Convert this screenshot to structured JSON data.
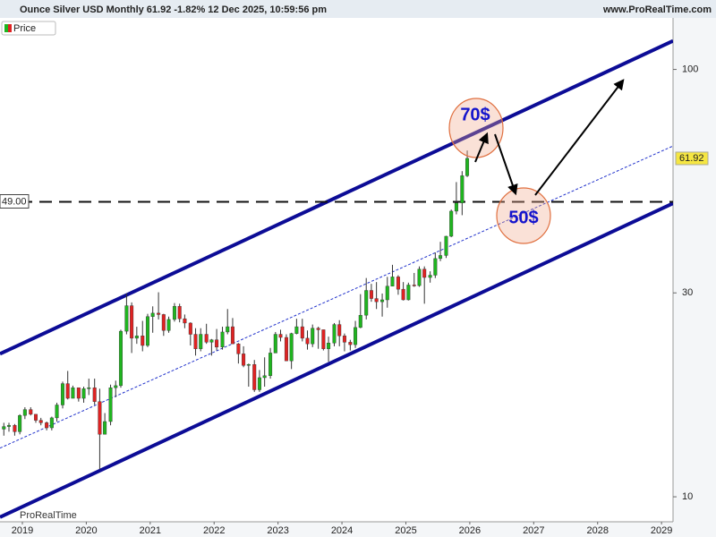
{
  "chart_data": {
    "type": "candlestick",
    "title": "Ounce Silver USD Monthly 61.92 -1.82% 12 Dec 2025, 10:59:56 pm",
    "source": "www.ProRealTime.com",
    "watermark": "ProRealTime",
    "log_scale": true,
    "up_color": "#1fb51f",
    "down_color": "#e02222",
    "x": [
      2018.71,
      2018.79,
      2018.88,
      2018.96,
      2019.04,
      2019.13,
      2019.21,
      2019.29,
      2019.38,
      2019.46,
      2019.54,
      2019.63,
      2019.71,
      2019.79,
      2019.88,
      2019.96,
      2020.04,
      2020.13,
      2020.21,
      2020.29,
      2020.38,
      2020.46,
      2020.54,
      2020.63,
      2020.71,
      2020.79,
      2020.88,
      2020.96,
      2021.04,
      2021.13,
      2021.21,
      2021.29,
      2021.38,
      2021.46,
      2021.54,
      2021.63,
      2021.71,
      2021.79,
      2021.88,
      2021.96,
      2022.04,
      2022.13,
      2022.21,
      2022.29,
      2022.38,
      2022.46,
      2022.54,
      2022.63,
      2022.71,
      2022.79,
      2022.88,
      2022.96,
      2023.04,
      2023.13,
      2023.21,
      2023.29,
      2023.38,
      2023.46,
      2023.54,
      2023.63,
      2023.71,
      2023.79,
      2023.88,
      2023.96,
      2024.04,
      2024.13,
      2024.21,
      2024.29,
      2024.38,
      2024.46,
      2024.54,
      2024.63,
      2024.71,
      2024.79,
      2024.88,
      2024.96,
      2025.04,
      2025.13,
      2025.21,
      2025.29,
      2025.38,
      2025.46,
      2025.54,
      2025.63,
      2025.71,
      2025.79,
      2025.88,
      2025.96
    ],
    "series": [
      {
        "name": "Price",
        "open": [
          14.4,
          14.6,
          14.7,
          14.2,
          15.5,
          16.0,
          15.6,
          15.1,
          14.9,
          14.5,
          15.3,
          16.4,
          18.4,
          17.0,
          18.0,
          17.0,
          17.9,
          18.0,
          16.7,
          14.0,
          15.0,
          18.0,
          18.2,
          24.4,
          28.0,
          23.5,
          23.8,
          22.6,
          26.4,
          26.9,
          26.7,
          24.5,
          26.0,
          27.9,
          26.1,
          25.5,
          24.0,
          22.2,
          24.0,
          23.0,
          23.3,
          22.4,
          24.3,
          25.0,
          22.8,
          21.6,
          20.3,
          20.4,
          17.8,
          19.0,
          19.2,
          21.7,
          24.0,
          23.6,
          20.8,
          24.1,
          25.0,
          23.5,
          22.8,
          24.8,
          24.6,
          22.2,
          22.9,
          25.3,
          23.8,
          23.0,
          22.7,
          24.9,
          26.6,
          30.4,
          29.1,
          28.6,
          28.9,
          31.1,
          32.7,
          30.6,
          28.9,
          31.3,
          31.2,
          34.1,
          32.6,
          33.0,
          36.1,
          36.7,
          40.7,
          46.6,
          48.7,
          56.4
        ],
        "high": [
          14.9,
          14.9,
          14.8,
          15.6,
          16.2,
          16.2,
          15.6,
          15.3,
          15.0,
          15.4,
          16.6,
          18.6,
          19.7,
          18.2,
          18.0,
          18.1,
          18.9,
          18.9,
          17.9,
          15.7,
          18.3,
          18.7,
          24.6,
          29.9,
          28.5,
          25.0,
          25.8,
          26.8,
          27.9,
          30.1,
          26.8,
          26.4,
          28.4,
          28.3,
          26.7,
          25.6,
          24.8,
          24.8,
          25.4,
          23.4,
          24.7,
          25.0,
          27.5,
          26.2,
          22.9,
          22.5,
          20.5,
          20.9,
          19.8,
          21.2,
          22.3,
          24.3,
          24.6,
          24.0,
          24.2,
          26.1,
          26.1,
          24.5,
          25.3,
          25.0,
          24.6,
          23.7,
          25.5,
          25.9,
          24.1,
          23.3,
          25.8,
          29.8,
          32.5,
          31.5,
          31.8,
          29.9,
          32.7,
          34.9,
          33.0,
          31.8,
          31.7,
          33.4,
          34.6,
          34.6,
          33.7,
          37.3,
          39.5,
          40.8,
          47.0,
          54.5,
          57.8,
          64.6
        ],
        "low": [
          13.9,
          14.2,
          13.9,
          14.0,
          15.2,
          15.5,
          14.9,
          14.7,
          14.3,
          14.3,
          15.0,
          16.1,
          16.9,
          17.0,
          16.7,
          16.6,
          17.3,
          16.4,
          11.6,
          14.0,
          14.7,
          17.1,
          18.0,
          24.0,
          21.7,
          22.8,
          21.9,
          22.4,
          24.2,
          26.0,
          23.8,
          24.2,
          25.7,
          25.6,
          24.8,
          22.6,
          21.4,
          21.9,
          22.8,
          21.4,
          22.0,
          22.1,
          24.0,
          22.8,
          20.5,
          20.1,
          18.1,
          17.6,
          17.6,
          18.1,
          18.9,
          21.7,
          23.1,
          20.8,
          19.9,
          24.0,
          23.1,
          22.1,
          22.4,
          22.2,
          22.0,
          20.7,
          22.5,
          22.5,
          21.9,
          22.0,
          22.3,
          24.8,
          26.0,
          28.6,
          27.5,
          26.4,
          27.7,
          31.1,
          29.7,
          28.8,
          28.8,
          31.0,
          31.0,
          28.3,
          31.7,
          32.5,
          35.6,
          36.2,
          40.5,
          45.8,
          45.6,
          56.0
        ],
        "close": [
          14.6,
          14.7,
          14.2,
          15.5,
          16.0,
          15.6,
          15.1,
          14.9,
          14.5,
          15.3,
          16.4,
          18.4,
          17.0,
          18.0,
          17.0,
          17.9,
          18.0,
          16.7,
          14.0,
          15.0,
          18.0,
          18.2,
          24.4,
          28.0,
          23.5,
          23.8,
          22.6,
          26.4,
          26.9,
          26.7,
          24.5,
          26.0,
          27.9,
          26.1,
          25.5,
          24.0,
          22.2,
          24.0,
          23.0,
          23.3,
          22.4,
          24.3,
          25.0,
          22.8,
          21.6,
          20.3,
          20.4,
          17.8,
          19.0,
          19.2,
          21.7,
          24.0,
          23.6,
          20.8,
          24.1,
          25.0,
          23.5,
          22.8,
          24.8,
          24.6,
          22.2,
          22.9,
          25.3,
          23.8,
          23.0,
          22.7,
          24.9,
          26.6,
          30.4,
          29.1,
          28.6,
          28.9,
          31.1,
          32.7,
          30.6,
          28.9,
          31.3,
          31.2,
          34.1,
          32.6,
          33.0,
          36.1,
          36.7,
          40.7,
          46.6,
          48.7,
          56.4,
          61.92
        ]
      }
    ],
    "xlim": [
      2018.65,
      2029.18
    ],
    "xticks": [
      2019,
      2020,
      2021,
      2022,
      2023,
      2024,
      2025,
      2026,
      2027,
      2028,
      2029
    ],
    "ylim": [
      8.74,
      132
    ],
    "yticks": [
      10,
      30,
      100
    ],
    "last_price": 61.92,
    "hline": {
      "value": 49,
      "label": "49.00"
    },
    "trendlines": [
      {
        "x": [
          2018.65,
          2029.18
        ],
        "y": [
          21.6,
          116.6
        ],
        "color": "#0c0c96",
        "style": "solid"
      },
      {
        "x": [
          2018.65,
          2029.18
        ],
        "y": [
          8.96,
          48.6
        ],
        "color": "#0c0c96",
        "style": "solid"
      },
      {
        "x": [
          2018.65,
          2029.18
        ],
        "y": [
          13.0,
          66.2
        ],
        "color": "#2233cc",
        "style": "dotted"
      }
    ],
    "annotations": [
      "70$",
      "50$"
    ]
  }
}
